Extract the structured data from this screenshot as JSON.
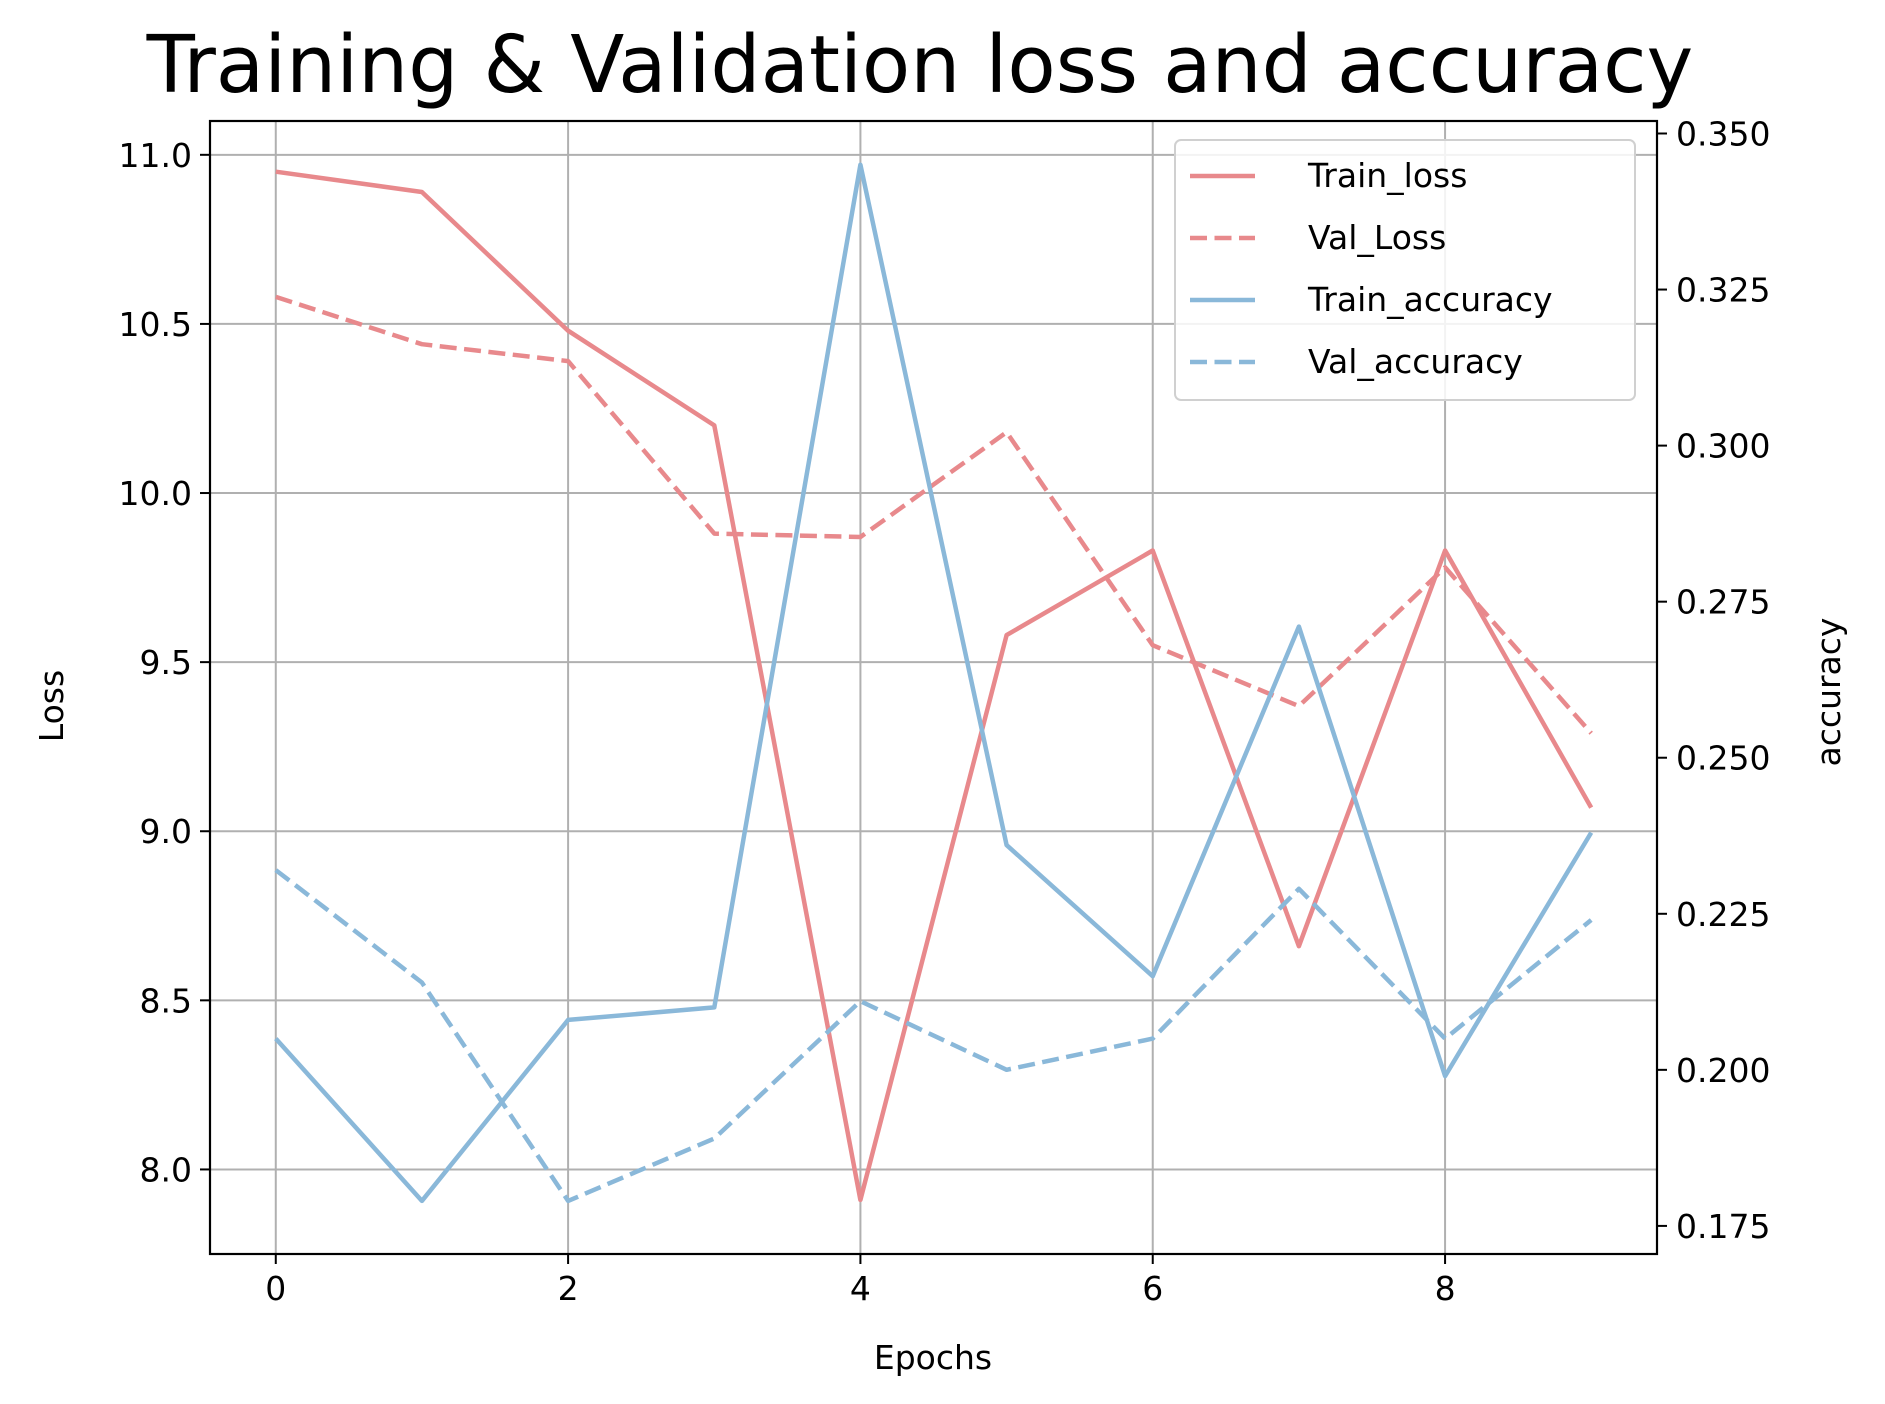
{
  "chart_data": {
    "type": "line",
    "title": "Training & Validation loss and accuracy",
    "xlabel": "Epochs",
    "ylabel": "Loss",
    "y2label": "accuracy",
    "x": [
      0,
      1,
      2,
      3,
      4,
      5,
      6,
      7,
      8,
      9
    ],
    "xlim": [
      -0.45,
      9.45
    ],
    "ylim": [
      7.75,
      11.1
    ],
    "y2lim": [
      0.1705,
      0.352
    ],
    "xticks": [
      0,
      2,
      4,
      6,
      8
    ],
    "xtick_labels": [
      "0",
      "2",
      "4",
      "6",
      "8"
    ],
    "yticks": [
      8.0,
      8.5,
      9.0,
      9.5,
      10.0,
      10.5,
      11.0
    ],
    "ytick_labels": [
      "8.0",
      "8.5",
      "9.0",
      "9.5",
      "10.0",
      "10.5",
      "11.0"
    ],
    "y2ticks": [
      0.175,
      0.2,
      0.225,
      0.25,
      0.275,
      0.3,
      0.325,
      0.35
    ],
    "y2tick_labels": [
      "0.175",
      "0.200",
      "0.225",
      "0.250",
      "0.275",
      "0.300",
      "0.325",
      "0.350"
    ],
    "grid": true,
    "legend_position": "top-right",
    "series": [
      {
        "name": "Train_loss",
        "axis": "left",
        "style": "solid",
        "color": "#e8898c",
        "values": [
          10.95,
          10.89,
          10.48,
          10.2,
          7.91,
          9.58,
          9.83,
          8.66,
          9.83,
          9.07
        ]
      },
      {
        "name": "Val_Loss",
        "axis": "left",
        "style": "dashed",
        "color": "#e8898c",
        "values": [
          10.58,
          10.44,
          10.39,
          9.88,
          9.87,
          10.18,
          9.55,
          9.37,
          9.78,
          9.29
        ]
      },
      {
        "name": "Train_accuracy",
        "axis": "right",
        "style": "solid",
        "color": "#8ab8d9",
        "values": [
          0.205,
          0.179,
          0.208,
          0.21,
          0.345,
          0.236,
          0.215,
          0.271,
          0.199,
          0.238
        ]
      },
      {
        "name": "Val_accuracy",
        "axis": "right",
        "style": "dashed",
        "color": "#8ab8d9",
        "values": [
          0.232,
          0.214,
          0.179,
          0.189,
          0.211,
          0.2,
          0.205,
          0.229,
          0.205,
          0.224
        ]
      }
    ]
  }
}
